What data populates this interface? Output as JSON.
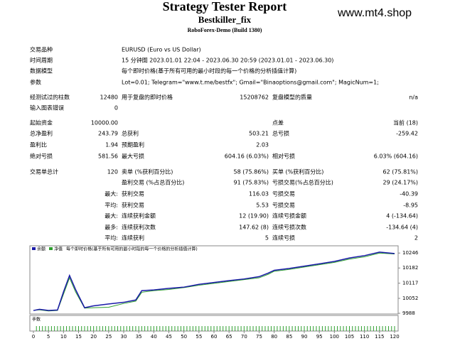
{
  "header": {
    "title": "Strategy Tester Report",
    "subtitle": "Bestkiller_fix",
    "server": "RoboForex-Demo (Build 1380)",
    "watermark": "www.mt4.shop"
  },
  "rows": [
    [
      "交易品种",
      null,
      "EURUSD (Euro vs US Dollar)",
      null,
      null,
      null
    ],
    [
      "时间周期",
      null,
      "15 分钟图 2023.01.01 22:04 - 2023.06.30 20:59 (2023.01.01 - 2023.06.30)",
      null,
      null,
      null
    ],
    [
      "数据模型",
      null,
      "每个即时价格(基于所有可用的最小时段的每一个价格的分析插值计算)",
      null,
      null,
      null
    ],
    [
      "参数",
      null,
      "Lot=0.01; Telegram=\"www.t.me/bestfx\"; Gmail=\"Binaoptions@gmail.com\"; MagicNum=1;",
      null,
      null,
      null
    ],
    [
      "经测试过的柱数",
      "12480",
      "用于复盘的即时价格",
      "15208762",
      "复盘模型的质量",
      "n/a"
    ],
    [
      "输入图表错误",
      "0",
      null,
      null,
      null,
      null
    ],
    [
      "起始资金",
      "10000.00",
      null,
      null,
      "点差",
      "当前 (18)"
    ],
    [
      "总净盈利",
      "243.79",
      "总获利",
      "503.21",
      "总亏损",
      "-259.42"
    ],
    [
      "盈利比",
      "1.94",
      "预期盈利",
      "2.03",
      null,
      null
    ],
    [
      "绝对亏损",
      "581.56",
      "最大亏损",
      "604.16 (6.03%)",
      "相对亏损",
      "6.03% (604.16)"
    ],
    [
      "交易单总计",
      "120",
      "卖单 (%获利百分比)",
      "58 (75.86%)",
      "买单 (%获利百分比)",
      "62 (75.81%)"
    ],
    [
      null,
      null,
      "盈利交易 (%占总百分比)",
      "91 (75.83%)",
      "亏损交易(%占总百分比)",
      "29 (24.17%)"
    ],
    [
      null,
      "最大:",
      "获利交易",
      "116.03",
      "亏损交易",
      "-40.39"
    ],
    [
      null,
      "平均:",
      "获利交易",
      "5.53",
      "亏损交易",
      "-8.95"
    ],
    [
      null,
      "最大:",
      "连续获利金额",
      "12 (19.90)",
      "连续亏损金额",
      "4 (-134.64)"
    ],
    [
      null,
      "最多:",
      "连续获利次数",
      "147.62 (8)",
      "连续亏损次数",
      "-134.64 (4)"
    ],
    [
      null,
      "平均:",
      "连续获利",
      "5",
      "连续亏损",
      "2"
    ]
  ],
  "chart_data": {
    "type": "line",
    "subtitle": "每个即时价格(基于所有可用的最小时段的每一个价格的分析插值计算)",
    "lots_label": "手数",
    "x": [
      0,
      2,
      5,
      8,
      10,
      12,
      14,
      17,
      20,
      25,
      30,
      34,
      36,
      40,
      45,
      50,
      55,
      60,
      65,
      70,
      75,
      78,
      80,
      85,
      90,
      95,
      100,
      105,
      110,
      115,
      120
    ],
    "series": [
      {
        "name": "余额",
        "color": "#1a1aa8",
        "values": [
          10000,
          10005,
          10000,
          10002,
          10080,
          10150,
          10090,
          10012,
          10020,
          10028,
          10035,
          10045,
          10085,
          10088,
          10095,
          10100,
          10112,
          10120,
          10128,
          10135,
          10145,
          10160,
          10172,
          10180,
          10190,
          10200,
          10210,
          10225,
          10235,
          10250,
          10244
        ]
      },
      {
        "name": "净值",
        "color": "#2e9e2e",
        "values": [
          10000,
          10003,
          9998,
          10000,
          10070,
          10140,
          10080,
          10010,
          10012,
          10014,
          10030,
          10040,
          10078,
          10085,
          10090,
          10098,
          10108,
          10116,
          10124,
          10132,
          10140,
          10155,
          10168,
          10176,
          10186,
          10196,
          10206,
          10220,
          10230,
          10246,
          10242
        ]
      }
    ],
    "lots": 0.01,
    "lots_count": 120,
    "xlim": [
      0,
      120
    ],
    "xticks": [
      0,
      5,
      10,
      15,
      20,
      25,
      30,
      35,
      40,
      45,
      50,
      55,
      60,
      65,
      70,
      75,
      80,
      85,
      90,
      95,
      100,
      105,
      110,
      115,
      120
    ],
    "ylim": [
      9988,
      10274
    ],
    "yticks": [
      9988,
      10052,
      10117,
      10182,
      10246
    ]
  }
}
